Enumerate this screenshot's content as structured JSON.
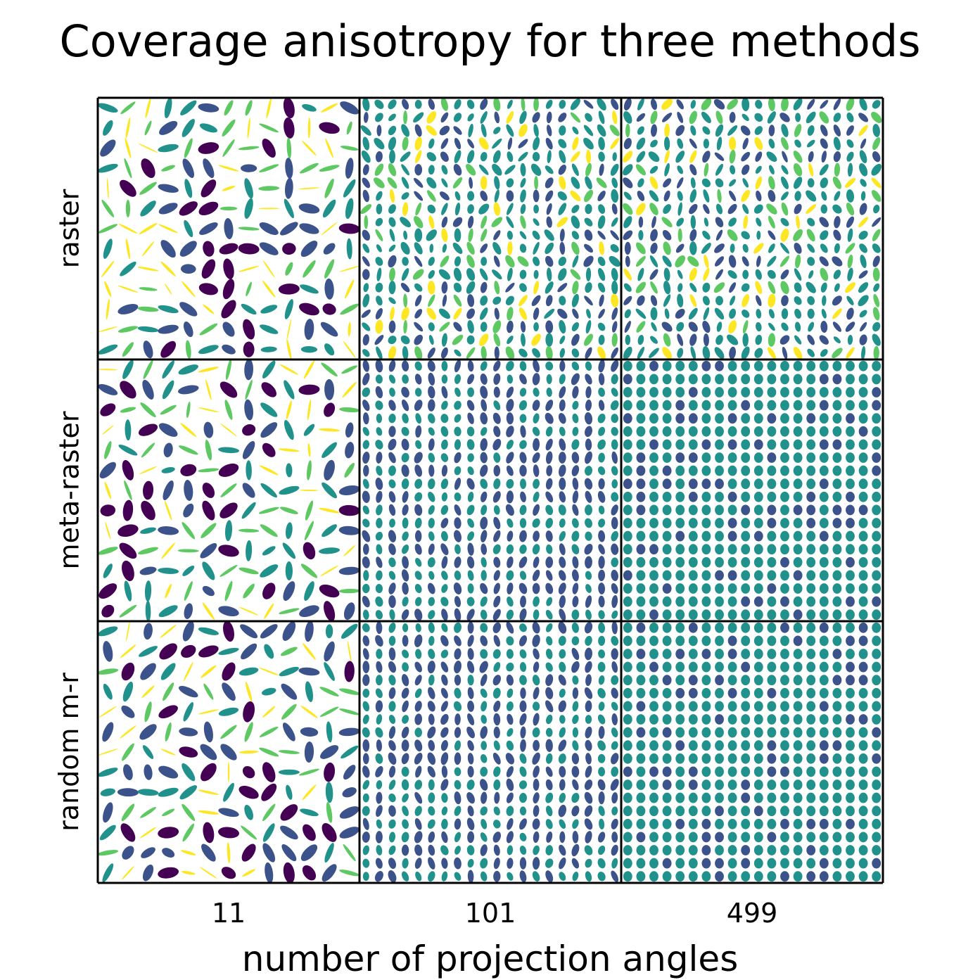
{
  "chart_data": {
    "type": "heatmap",
    "title": "Coverage anisotropy for three methods",
    "xlabel": "number of projection angles",
    "ylabel": "",
    "columns": [
      "11",
      "101",
      "499"
    ],
    "rows": [
      "raster",
      "meta-raster",
      "random m-r"
    ],
    "colormap": "viridis",
    "colors": [
      "#440154",
      "#3b528b",
      "#21918c",
      "#5ec962",
      "#fde725"
    ],
    "cells": [
      {
        "row": "raster",
        "angles": "11",
        "anisotropy": "high"
      },
      {
        "row": "raster",
        "angles": "101",
        "anisotropy": "medium"
      },
      {
        "row": "raster",
        "angles": "499",
        "anisotropy": "medium"
      },
      {
        "row": "meta-raster",
        "angles": "11",
        "anisotropy": "high"
      },
      {
        "row": "meta-raster",
        "angles": "101",
        "anisotropy": "low"
      },
      {
        "row": "meta-raster",
        "angles": "499",
        "anisotropy": "minimal"
      },
      {
        "row": "random m-r",
        "angles": "11",
        "anisotropy": "high"
      },
      {
        "row": "random m-r",
        "angles": "101",
        "anisotropy": "low"
      },
      {
        "row": "random m-r",
        "angles": "499",
        "anisotropy": "minimal"
      }
    ]
  }
}
